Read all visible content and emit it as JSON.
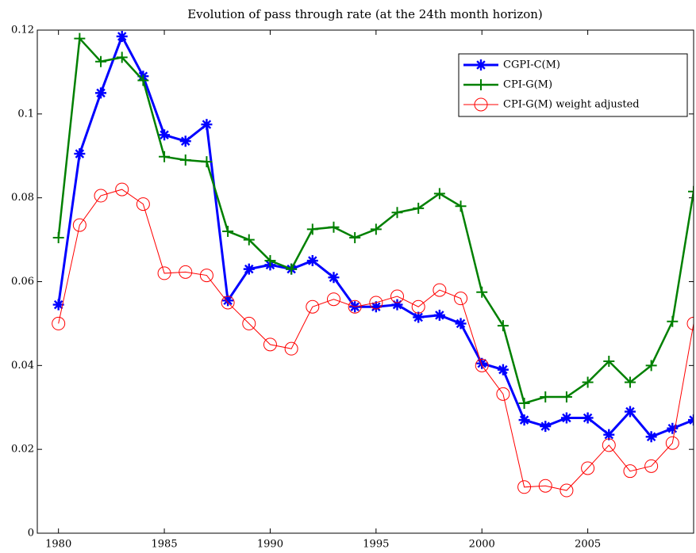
{
  "chart_data": {
    "type": "line",
    "title": "Evolution of pass through rate (at the 24th month horizon)",
    "x": [
      1980,
      1981,
      1982,
      1983,
      1984,
      1985,
      1986,
      1987,
      1988,
      1989,
      1990,
      1991,
      1992,
      1993,
      1994,
      1995,
      1996,
      1997,
      1998,
      1999,
      2000,
      2001,
      2002,
      2003,
      2004,
      2005,
      2006,
      2007,
      2008,
      2009,
      2010
    ],
    "series": [
      {
        "name": "CGPI-C(M)",
        "color": "#0000ff",
        "marker": "*",
        "values": [
          0.0545,
          0.0905,
          0.105,
          0.1185,
          0.109,
          0.095,
          0.0935,
          0.0975,
          0.0555,
          0.063,
          0.064,
          0.063,
          0.065,
          0.061,
          0.054,
          0.054,
          0.0545,
          0.0515,
          0.052,
          0.05,
          0.0405,
          0.039,
          0.027,
          0.0255,
          0.0275,
          0.0275,
          0.0235,
          0.029,
          0.023,
          0.025,
          0.027
        ]
      },
      {
        "name": "CPI-G(M)",
        "color": "#008000",
        "marker": "+",
        "values": [
          0.0705,
          0.118,
          0.1125,
          0.1135,
          0.108,
          0.0898,
          0.089,
          0.0886,
          0.072,
          0.07,
          0.065,
          0.063,
          0.0725,
          0.073,
          0.0705,
          0.0725,
          0.0765,
          0.0775,
          0.081,
          0.078,
          0.0575,
          0.0495,
          0.031,
          0.0325,
          0.0325,
          0.036,
          0.041,
          0.036,
          0.04,
          0.0505,
          0.0815
        ]
      },
      {
        "name": "CPI-G(M) weight adjusted",
        "color": "#ff0000",
        "marker": "o",
        "values": [
          0.05,
          0.0735,
          0.0805,
          0.082,
          0.0785,
          0.062,
          0.0623,
          0.0615,
          0.055,
          0.05,
          0.045,
          0.044,
          0.054,
          0.0558,
          0.054,
          0.055,
          0.0565,
          0.054,
          0.058,
          0.056,
          0.04,
          0.0332,
          0.011,
          0.0113,
          0.0102,
          0.0155,
          0.021,
          0.0148,
          0.016,
          0.0215,
          0.05
        ]
      }
    ],
    "xlim": [
      1979,
      2010
    ],
    "ylim": [
      0,
      0.12
    ],
    "xticks": [
      1980,
      1985,
      1990,
      1995,
      2000,
      2005
    ],
    "yticks": [
      0,
      0.02,
      0.04,
      0.06,
      0.08,
      0.1,
      0.12
    ],
    "legend": "upper right"
  }
}
